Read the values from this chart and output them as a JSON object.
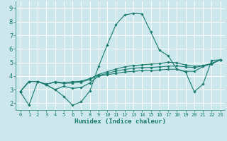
{
  "xlabel": "Humidex (Indice chaleur)",
  "xlim": [
    -0.5,
    23.5
  ],
  "ylim": [
    1.5,
    9.5
  ],
  "yticks": [
    2,
    3,
    4,
    5,
    6,
    7,
    8,
    9
  ],
  "xticks": [
    0,
    1,
    2,
    3,
    4,
    5,
    6,
    7,
    8,
    9,
    10,
    11,
    12,
    13,
    14,
    15,
    16,
    17,
    18,
    19,
    20,
    21,
    22,
    23
  ],
  "bg_color": "#cce8ec",
  "grid_color": "#ffffff",
  "line_color": "#1a7a6e",
  "lines": [
    {
      "x": [
        0,
        1,
        2,
        3,
        4,
        5,
        6,
        7,
        8,
        9,
        10,
        11,
        12,
        13,
        14,
        15,
        16,
        17,
        18,
        19,
        20,
        21,
        22,
        23
      ],
      "y": [
        2.85,
        1.85,
        3.6,
        3.35,
        3.0,
        2.5,
        1.85,
        2.1,
        2.9,
        4.7,
        6.3,
        7.8,
        8.5,
        8.62,
        8.58,
        7.25,
        5.9,
        5.5,
        4.5,
        4.3,
        2.85,
        3.4,
        5.15,
        5.2
      ]
    },
    {
      "x": [
        0,
        1,
        2,
        3,
        4,
        5,
        6,
        7,
        8,
        9,
        10,
        11,
        12,
        13,
        14,
        15,
        16,
        17,
        18,
        19,
        20,
        21,
        22,
        23
      ],
      "y": [
        2.85,
        3.6,
        3.6,
        3.35,
        3.0,
        3.25,
        3.1,
        3.15,
        3.5,
        4.0,
        4.1,
        4.2,
        4.3,
        4.35,
        4.4,
        4.4,
        4.45,
        4.5,
        4.5,
        4.35,
        4.35,
        4.7,
        4.95,
        5.2
      ]
    },
    {
      "x": [
        0,
        1,
        2,
        3,
        4,
        5,
        6,
        7,
        8,
        9,
        10,
        11,
        12,
        13,
        14,
        15,
        16,
        17,
        18,
        19,
        20,
        21,
        22,
        23
      ],
      "y": [
        2.85,
        3.6,
        3.6,
        3.4,
        3.55,
        3.45,
        3.5,
        3.55,
        3.75,
        4.05,
        4.18,
        4.38,
        4.48,
        4.58,
        4.62,
        4.63,
        4.68,
        4.72,
        4.75,
        4.68,
        4.62,
        4.75,
        4.88,
        5.2
      ]
    },
    {
      "x": [
        0,
        1,
        2,
        3,
        4,
        5,
        6,
        7,
        8,
        9,
        10,
        11,
        12,
        13,
        14,
        15,
        16,
        17,
        18,
        19,
        20,
        21,
        22,
        23
      ],
      "y": [
        2.85,
        3.6,
        3.6,
        3.4,
        3.58,
        3.52,
        3.58,
        3.62,
        3.82,
        4.12,
        4.32,
        4.52,
        4.68,
        4.78,
        4.82,
        4.88,
        4.92,
        5.02,
        4.98,
        4.82,
        4.72,
        4.78,
        4.92,
        5.2
      ]
    }
  ]
}
